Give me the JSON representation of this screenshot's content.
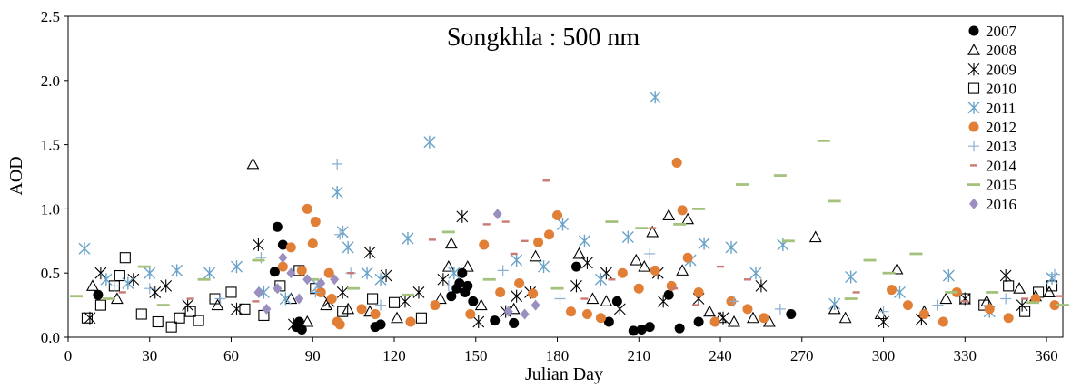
{
  "chart_data": {
    "type": "scatter",
    "title": "Songkhla : 500 nm",
    "xlabel": "Julian Day",
    "ylabel": "AOD",
    "xlim": [
      0,
      366
    ],
    "ylim": [
      0,
      2.5
    ],
    "x_ticks": [
      0,
      30,
      60,
      90,
      120,
      150,
      180,
      210,
      240,
      270,
      300,
      330,
      360
    ],
    "x_tick_labels": [
      "0",
      "30",
      "60",
      "90",
      "120",
      "150",
      "180",
      "210",
      "240",
      "270",
      "300",
      "330",
      "360"
    ],
    "y_ticks": [
      0,
      0.5,
      1.0,
      1.5,
      2.0,
      2.5
    ],
    "y_tick_labels": [
      "0.0",
      "0.5",
      "1.0",
      "1.5",
      "2.0",
      "2.5"
    ],
    "grid": false,
    "legend_position": "top-right",
    "series": [
      {
        "name": "2007",
        "marker": "filled-circle",
        "color": "#000000",
        "points": [
          [
            11,
            0.33
          ],
          [
            76,
            0.51
          ],
          [
            77,
            0.86
          ],
          [
            79,
            0.72
          ],
          [
            84,
            0.08
          ],
          [
            85,
            0.12
          ],
          [
            86,
            0.06
          ],
          [
            113,
            0.08
          ],
          [
            115,
            0.1
          ],
          [
            141,
            0.32
          ],
          [
            143,
            0.38
          ],
          [
            144,
            0.42
          ],
          [
            145,
            0.5
          ],
          [
            146,
            0.35
          ],
          [
            147,
            0.4
          ],
          [
            149,
            0.28
          ],
          [
            157,
            0.13
          ],
          [
            164,
            0.11
          ],
          [
            187,
            0.55
          ],
          [
            199,
            0.12
          ],
          [
            202,
            0.28
          ],
          [
            208,
            0.05
          ],
          [
            211,
            0.06
          ],
          [
            214,
            0.08
          ],
          [
            221,
            0.33
          ],
          [
            225,
            0.07
          ],
          [
            232,
            0.12
          ],
          [
            266,
            0.18
          ]
        ]
      },
      {
        "name": "2008",
        "marker": "triangle",
        "color": "#000000",
        "points": [
          [
            9,
            0.4
          ],
          [
            18,
            0.3
          ],
          [
            55,
            0.25
          ],
          [
            68,
            1.35
          ],
          [
            82,
            0.3
          ],
          [
            88,
            0.12
          ],
          [
            95,
            0.25
          ],
          [
            103,
            0.22
          ],
          [
            111,
            0.2
          ],
          [
            121,
            0.15
          ],
          [
            137,
            0.3
          ],
          [
            140,
            0.55
          ],
          [
            141,
            0.73
          ],
          [
            147,
            0.55
          ],
          [
            152,
            0.25
          ],
          [
            164,
            0.22
          ],
          [
            172,
            0.63
          ],
          [
            188,
            0.65
          ],
          [
            193,
            0.3
          ],
          [
            198,
            0.28
          ],
          [
            209,
            0.6
          ],
          [
            212,
            0.55
          ],
          [
            215,
            0.82
          ],
          [
            221,
            0.95
          ],
          [
            226,
            0.52
          ],
          [
            228,
            0.92
          ],
          [
            236,
            0.2
          ],
          [
            240,
            0.15
          ],
          [
            245,
            0.12
          ],
          [
            252,
            0.15
          ],
          [
            258,
            0.12
          ],
          [
            275,
            0.78
          ],
          [
            282,
            0.22
          ],
          [
            286,
            0.15
          ],
          [
            299,
            0.18
          ],
          [
            305,
            0.53
          ],
          [
            315,
            0.2
          ],
          [
            323,
            0.3
          ],
          [
            338,
            0.28
          ],
          [
            350,
            0.38
          ],
          [
            356,
            0.32
          ],
          [
            361,
            0.35
          ]
        ]
      },
      {
        "name": "2009",
        "marker": "asterisk",
        "color": "#000000",
        "points": [
          [
            8,
            0.15
          ],
          [
            12,
            0.5
          ],
          [
            24,
            0.45
          ],
          [
            32,
            0.35
          ],
          [
            36,
            0.4
          ],
          [
            44,
            0.25
          ],
          [
            62,
            0.22
          ],
          [
            70,
            0.72
          ],
          [
            83,
            0.1
          ],
          [
            96,
            0.28
          ],
          [
            101,
            0.35
          ],
          [
            111,
            0.66
          ],
          [
            117,
            0.48
          ],
          [
            124,
            0.28
          ],
          [
            129,
            0.35
          ],
          [
            138,
            0.45
          ],
          [
            145,
            0.94
          ],
          [
            151,
            0.12
          ],
          [
            161,
            0.2
          ],
          [
            165,
            0.32
          ],
          [
            170,
            0.35
          ],
          [
            187,
            0.4
          ],
          [
            191,
            0.58
          ],
          [
            198,
            0.5
          ],
          [
            203,
            0.22
          ],
          [
            217,
            0.5
          ],
          [
            219,
            0.28
          ],
          [
            232,
            0.3
          ],
          [
            241,
            0.15
          ],
          [
            255,
            0.4
          ],
          [
            300,
            0.12
          ],
          [
            314,
            0.14
          ],
          [
            330,
            0.3
          ],
          [
            345,
            0.48
          ],
          [
            351,
            0.25
          ]
        ]
      },
      {
        "name": "2010",
        "marker": "open-square",
        "color": "#000000",
        "points": [
          [
            7,
            0.15
          ],
          [
            12,
            0.25
          ],
          [
            17,
            0.4
          ],
          [
            19,
            0.48
          ],
          [
            21,
            0.62
          ],
          [
            27,
            0.18
          ],
          [
            33,
            0.12
          ],
          [
            38,
            0.08
          ],
          [
            41,
            0.15
          ],
          [
            45,
            0.2
          ],
          [
            48,
            0.13
          ],
          [
            54,
            0.3
          ],
          [
            60,
            0.35
          ],
          [
            65,
            0.22
          ],
          [
            72,
            0.17
          ],
          [
            78,
            0.4
          ],
          [
            85,
            0.52
          ],
          [
            91,
            0.38
          ],
          [
            101,
            0.2
          ],
          [
            112,
            0.3
          ],
          [
            120,
            0.27
          ],
          [
            130,
            0.15
          ],
          [
            330,
            0.3
          ],
          [
            337,
            0.25
          ],
          [
            346,
            0.4
          ],
          [
            352,
            0.2
          ],
          [
            357,
            0.35
          ],
          [
            362,
            0.4
          ]
        ]
      },
      {
        "name": "2011",
        "marker": "star",
        "color": "#6aa3c8",
        "points": [
          [
            6,
            0.69
          ],
          [
            14,
            0.45
          ],
          [
            22,
            0.42
          ],
          [
            30,
            0.5
          ],
          [
            40,
            0.52
          ],
          [
            52,
            0.5
          ],
          [
            62,
            0.55
          ],
          [
            72,
            0.35
          ],
          [
            80,
            0.3
          ],
          [
            92,
            0.4
          ],
          [
            99,
            1.13
          ],
          [
            101,
            0.82
          ],
          [
            103,
            0.7
          ],
          [
            110,
            0.5
          ],
          [
            115,
            0.45
          ],
          [
            125,
            0.77
          ],
          [
            133,
            1.52
          ],
          [
            142,
            0.5
          ],
          [
            165,
            0.6
          ],
          [
            175,
            0.55
          ],
          [
            182,
            0.88
          ],
          [
            190,
            0.75
          ],
          [
            196,
            0.45
          ],
          [
            206,
            0.78
          ],
          [
            216,
            1.87
          ],
          [
            229,
            0.6
          ],
          [
            234,
            0.73
          ],
          [
            244,
            0.7
          ],
          [
            253,
            0.5
          ],
          [
            263,
            0.72
          ],
          [
            282,
            0.26
          ],
          [
            288,
            0.47
          ],
          [
            306,
            0.35
          ],
          [
            324,
            0.48
          ],
          [
            339,
            0.2
          ],
          [
            362,
            0.46
          ]
        ]
      },
      {
        "name": "2012",
        "marker": "filled-circle",
        "color": "#e07f35",
        "points": [
          [
            79,
            0.55
          ],
          [
            82,
            0.7
          ],
          [
            86,
            0.52
          ],
          [
            88,
            1.0
          ],
          [
            90,
            0.73
          ],
          [
            91,
            0.9
          ],
          [
            93,
            0.35
          ],
          [
            96,
            0.5
          ],
          [
            97,
            0.3
          ],
          [
            99,
            0.12
          ],
          [
            100,
            0.1
          ],
          [
            108,
            0.22
          ],
          [
            113,
            0.18
          ],
          [
            126,
            0.12
          ],
          [
            135,
            0.25
          ],
          [
            148,
            0.18
          ],
          [
            153,
            0.72
          ],
          [
            159,
            0.35
          ],
          [
            166,
            0.42
          ],
          [
            171,
            0.34
          ],
          [
            173,
            0.74
          ],
          [
            177,
            0.8
          ],
          [
            180,
            0.95
          ],
          [
            185,
            0.2
          ],
          [
            191,
            0.18
          ],
          [
            196,
            0.15
          ],
          [
            204,
            0.5
          ],
          [
            210,
            0.38
          ],
          [
            216,
            0.52
          ],
          [
            222,
            0.4
          ],
          [
            224,
            1.36
          ],
          [
            226,
            0.99
          ],
          [
            228,
            0.62
          ],
          [
            232,
            0.35
          ],
          [
            238,
            0.12
          ],
          [
            244,
            0.28
          ],
          [
            250,
            0.22
          ],
          [
            256,
            0.15
          ],
          [
            303,
            0.37
          ],
          [
            309,
            0.25
          ],
          [
            315,
            0.18
          ],
          [
            322,
            0.12
          ],
          [
            327,
            0.35
          ],
          [
            339,
            0.22
          ],
          [
            346,
            0.15
          ],
          [
            356,
            0.3
          ],
          [
            363,
            0.25
          ]
        ]
      },
      {
        "name": "2013",
        "marker": "plus",
        "color": "#8aaed0",
        "points": [
          [
            17,
            0.4
          ],
          [
            30,
            0.38
          ],
          [
            56,
            0.3
          ],
          [
            71,
            0.62
          ],
          [
            91,
            0.35
          ],
          [
            99,
            1.35
          ],
          [
            100,
            0.8
          ],
          [
            104,
            0.5
          ],
          [
            115,
            0.25
          ],
          [
            140,
            0.4
          ],
          [
            160,
            0.52
          ],
          [
            181,
            0.3
          ],
          [
            214,
            0.65
          ],
          [
            245,
            0.28
          ],
          [
            262,
            0.22
          ],
          [
            300,
            0.2
          ],
          [
            320,
            0.25
          ],
          [
            345,
            0.3
          ],
          [
            363,
            0.49
          ]
        ]
      },
      {
        "name": "2014",
        "marker": "dash-short",
        "color": "#c97a72",
        "points": [
          [
            20,
            0.35
          ],
          [
            45,
            0.3
          ],
          [
            69,
            0.28
          ],
          [
            90,
            0.45
          ],
          [
            104,
            0.5
          ],
          [
            134,
            0.76
          ],
          [
            154,
            0.88
          ],
          [
            161,
            0.9
          ],
          [
            164,
            0.65
          ],
          [
            168,
            0.75
          ],
          [
            176,
            1.22
          ],
          [
            190,
            0.3
          ],
          [
            200,
            0.45
          ],
          [
            215,
            0.85
          ],
          [
            223,
            0.38
          ],
          [
            231,
            0.25
          ],
          [
            240,
            0.55
          ],
          [
            250,
            0.45
          ],
          [
            290,
            0.35
          ],
          [
            330,
            0.28
          ],
          [
            352,
            0.3
          ],
          [
            365,
            0.32
          ]
        ]
      },
      {
        "name": "2015",
        "marker": "dash",
        "color": "#a4c27c",
        "points": [
          [
            3,
            0.32
          ],
          [
            15,
            0.3
          ],
          [
            28,
            0.55
          ],
          [
            35,
            0.25
          ],
          [
            50,
            0.45
          ],
          [
            70,
            0.6
          ],
          [
            90,
            0.45
          ],
          [
            105,
            0.38
          ],
          [
            125,
            0.33
          ],
          [
            140,
            0.82
          ],
          [
            155,
            0.45
          ],
          [
            180,
            0.38
          ],
          [
            200,
            0.9
          ],
          [
            211,
            0.85
          ],
          [
            225,
            0.88
          ],
          [
            232,
            1.0
          ],
          [
            248,
            1.19
          ],
          [
            262,
            1.26
          ],
          [
            265,
            0.75
          ],
          [
            278,
            1.53
          ],
          [
            282,
            1.06
          ],
          [
            288,
            0.3
          ],
          [
            295,
            0.6
          ],
          [
            302,
            0.5
          ],
          [
            312,
            0.65
          ],
          [
            325,
            0.35
          ],
          [
            340,
            0.35
          ],
          [
            355,
            0.27
          ],
          [
            366,
            0.25
          ]
        ]
      },
      {
        "name": "2016",
        "marker": "diamond",
        "color": "#9a8fc0",
        "points": [
          [
            70,
            0.35
          ],
          [
            73,
            0.22
          ],
          [
            77,
            0.38
          ],
          [
            79,
            0.62
          ],
          [
            82,
            0.5
          ],
          [
            85,
            0.3
          ],
          [
            88,
            0.45
          ],
          [
            93,
            0.42
          ],
          [
            98,
            0.45
          ],
          [
            158,
            0.96
          ],
          [
            162,
            0.2
          ],
          [
            168,
            0.18
          ],
          [
            172,
            0.25
          ]
        ]
      }
    ]
  }
}
